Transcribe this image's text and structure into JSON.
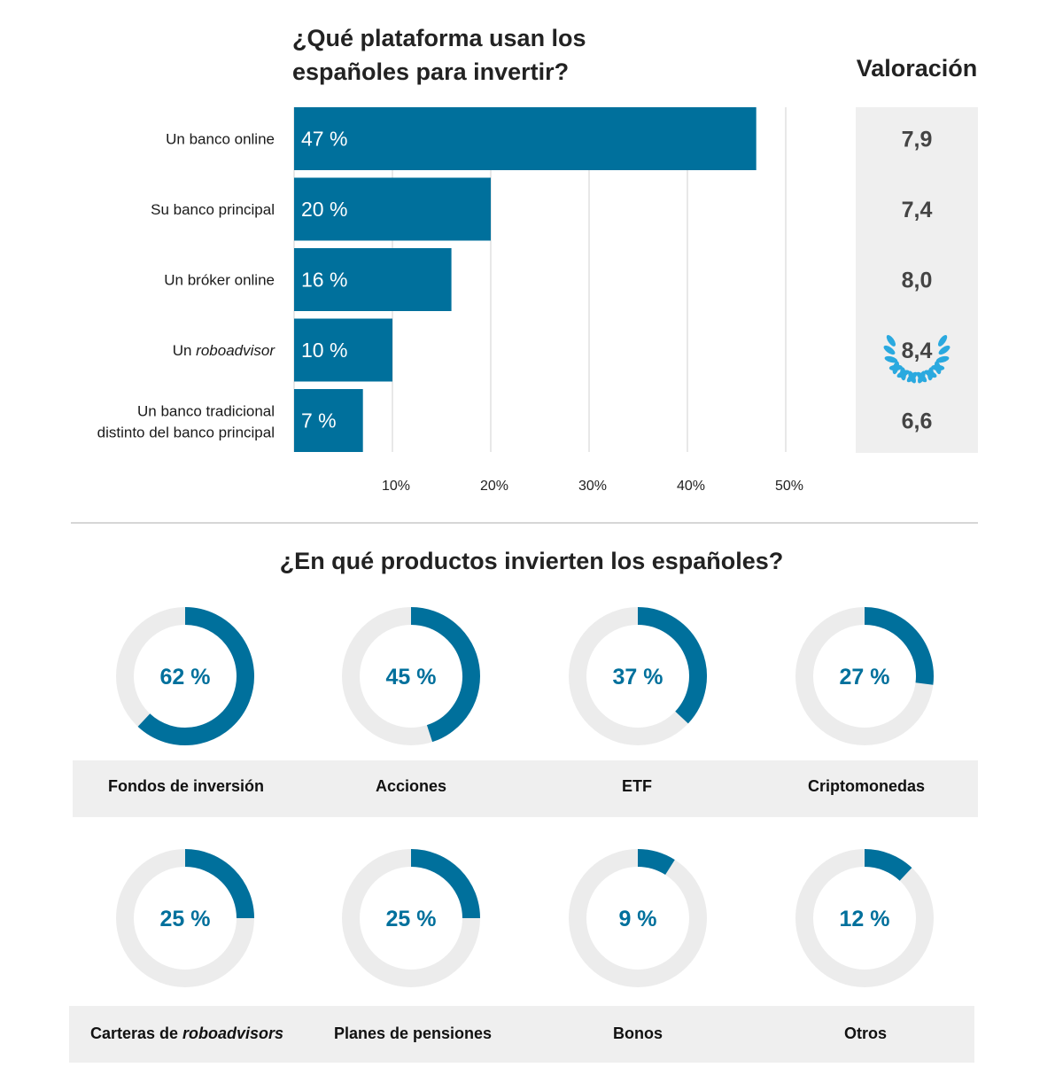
{
  "header": {
    "title_line1": "¿Qué plataforma usan los",
    "title_line2": "españoles para invertir?",
    "rating_title": "Valoración"
  },
  "colors": {
    "bar": "#00709c",
    "track": "#ececec",
    "panel": "#efefef",
    "donut_text": "#00709c",
    "laurel": "#2aa9df"
  },
  "chart_data": [
    {
      "type": "bar",
      "orientation": "horizontal",
      "title": "¿Qué plataforma usan los españoles para invertir?",
      "categories": [
        "Un banco online",
        "Su banco principal",
        "Un bróker online",
        "Un roboadvisor",
        "Un banco tradicional distinto del banco principal"
      ],
      "category_lines": [
        [
          "Un banco online"
        ],
        [
          "Su banco principal"
        ],
        [
          "Un bróker online"
        ],
        [
          "Un ",
          "roboadvisor"
        ],
        [
          "Un banco tradicional",
          "distinto del banco principal"
        ]
      ],
      "values": [
        47,
        20,
        16,
        10,
        7
      ],
      "value_labels": [
        "47 %",
        "20 %",
        "16 %",
        "10 %",
        "7 %"
      ],
      "xlim": [
        0,
        50
      ],
      "xticks": [
        10,
        20,
        30,
        40,
        50
      ],
      "xtick_labels": [
        "10%",
        "20%",
        "30%",
        "40%",
        "50%"
      ],
      "grid": true,
      "ratings": [
        "7,9",
        "7,4",
        "8,0",
        "8,4",
        "6,6"
      ],
      "highlight_rating_index": 3
    },
    {
      "type": "pie",
      "variant": "donut",
      "title": "¿En qué productos invierten los españoles?",
      "categories": [
        "Fondos de inversión",
        "Acciones",
        "ETF",
        "Criptomonedas",
        "Carteras de roboadvisors",
        "Planes de pensiones",
        "Bonos",
        "Otros"
      ],
      "values": [
        62,
        45,
        37,
        27,
        25,
        25,
        9,
        12
      ],
      "value_labels": [
        "62 %",
        "45 %",
        "37 %",
        "27 %",
        "25 %",
        "25 %",
        "9 %",
        "12 %"
      ]
    }
  ],
  "products_title": "¿En qué productos invierten los españoles?",
  "product_labels": {
    "fondos": "Fondos de inversión",
    "acciones": "Acciones",
    "etf": "ETF",
    "cripto": "Criptomonedas",
    "carteras_prefix": "Carteras de ",
    "carteras_italic": "roboadvisors",
    "planes": "Planes de pensiones",
    "bonos": "Bonos",
    "otros": "Otros"
  }
}
